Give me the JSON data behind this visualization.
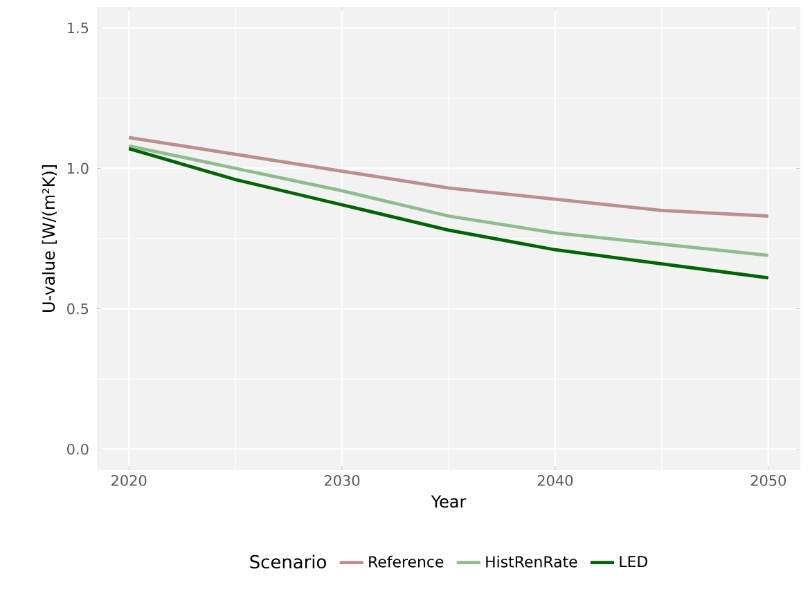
{
  "chart_data": {
    "type": "line",
    "xlabel": "Year",
    "ylabel": "U-value [W/(m²K)]",
    "legend_title": "Scenario",
    "legend": "bottom",
    "grid": true,
    "x": [
      2020,
      2025,
      2030,
      2035,
      2040,
      2045,
      2050
    ],
    "series": [
      {
        "name": "Reference",
        "color": "#bc8f8f",
        "values": [
          1.11,
          1.05,
          0.99,
          0.93,
          0.89,
          0.85,
          0.83
        ]
      },
      {
        "name": "HistRenRate",
        "color": "#8fbc8f",
        "values": [
          1.08,
          1.0,
          0.92,
          0.83,
          0.77,
          0.73,
          0.69
        ]
      },
      {
        "name": "LED",
        "color": "#006400",
        "values": [
          1.07,
          0.96,
          0.87,
          0.78,
          0.71,
          0.66,
          0.61
        ]
      }
    ],
    "xlim": [
      2018.5,
      2051.5
    ],
    "ylim": [
      -0.075,
      1.575
    ],
    "xticks": [
      2020,
      2030,
      2040,
      2050
    ],
    "yticks": [
      {
        "value": 0,
        "label": "0.0"
      },
      {
        "value": 0.5,
        "label": "0.5"
      },
      {
        "value": 1,
        "label": "1.0"
      },
      {
        "value": 1.5,
        "label": "1.5"
      }
    ]
  }
}
